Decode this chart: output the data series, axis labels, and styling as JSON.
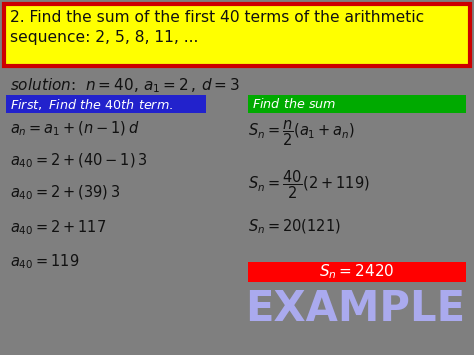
{
  "bg_color": "#7f7f7f",
  "title_text": "2. Find the sum of the first 40 terms of the arithmetic\nsequence: 2, 5, 8, 11, ...",
  "title_bg": "#ffff00",
  "title_border": "#cc0000",
  "left_label_bg": "#2222cc",
  "right_label_bg": "#00aa00",
  "answer_bg": "#ff0000",
  "watermark": "EXAMPLE",
  "watermark_color": "#aaaaee",
  "text_color": "#ffffff",
  "dark_text": "#111111",
  "title_fontsize": 11.2,
  "sol_fontsize": 11.0,
  "label_fontsize": 9.2,
  "math_fontsize": 10.5,
  "answer_fontsize": 11.0,
  "watermark_fontsize": 30
}
